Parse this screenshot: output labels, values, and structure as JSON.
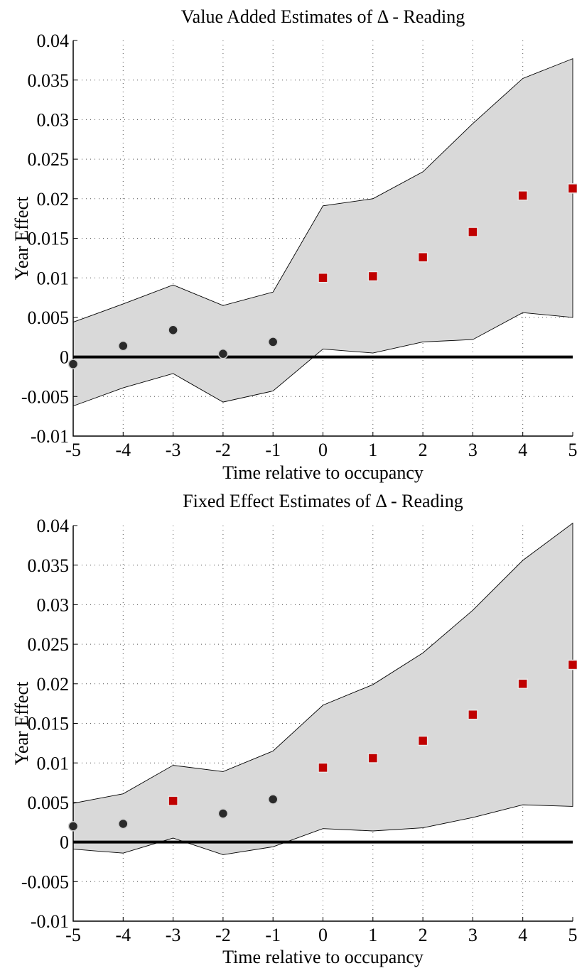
{
  "chart_data": [
    {
      "type": "scatter",
      "title": "Value Added Estimates of Δ - Reading",
      "xlabel": "Time relative to occupancy",
      "ylabel": "Year Effect",
      "x": [
        -5,
        -4,
        -3,
        -2,
        -1,
        0,
        1,
        2,
        3,
        4,
        5
      ],
      "xticks": [
        "-5",
        "-4",
        "-3",
        "-2",
        "-1",
        "0",
        "1",
        "2",
        "3",
        "4",
        "5"
      ],
      "yticks": [
        "-0.01",
        "-0.005",
        "0",
        "0.005",
        "0.01",
        "0.015",
        "0.02",
        "0.025",
        "0.03",
        "0.035",
        "0.04"
      ],
      "xlim": [
        -5,
        5
      ],
      "ylim": [
        -0.01,
        0.04
      ],
      "grid": true,
      "zero_line": 0,
      "series": [
        {
          "role": "upper_bound",
          "values": [
            0.0044,
            0.0067,
            0.0091,
            0.0065,
            0.0082,
            0.0191,
            0.02,
            0.0234,
            0.0295,
            0.0352,
            0.0377
          ]
        },
        {
          "role": "lower_bound",
          "values": [
            -0.0062,
            -0.0039,
            -0.0021,
            -0.0057,
            -0.0043,
            0.001,
            0.0005,
            0.0019,
            0.0022,
            0.0056,
            0.005
          ]
        },
        {
          "role": "estimate",
          "values": [
            -0.0009,
            0.0014,
            0.0034,
            0.0004,
            0.0019,
            0.01,
            0.0102,
            0.0126,
            0.0158,
            0.0204,
            0.0213
          ],
          "markers": [
            "circle",
            "circle",
            "circle",
            "circle",
            "circle",
            "square",
            "square",
            "square",
            "square",
            "square",
            "square"
          ]
        }
      ]
    },
    {
      "type": "scatter",
      "title": "Fixed Effect Estimates of Δ - Reading",
      "xlabel": "Time relative to occupancy",
      "ylabel": "Year Effect",
      "x": [
        -5,
        -4,
        -3,
        -2,
        -1,
        0,
        1,
        2,
        3,
        4,
        5
      ],
      "xticks": [
        "-5",
        "-4",
        "-3",
        "-2",
        "-1",
        "0",
        "1",
        "2",
        "3",
        "4",
        "5"
      ],
      "yticks": [
        "-0.01",
        "-0.005",
        "0",
        "0.005",
        "0.01",
        "0.015",
        "0.02",
        "0.025",
        "0.03",
        "0.035",
        "0.04"
      ],
      "xlim": [
        -5,
        5
      ],
      "ylim": [
        -0.01,
        0.04
      ],
      "grid": true,
      "zero_line": 0,
      "series": [
        {
          "role": "upper_bound",
          "values": [
            0.0049,
            0.0061,
            0.0097,
            0.0089,
            0.0115,
            0.0173,
            0.0199,
            0.0239,
            0.0293,
            0.0356,
            0.0403
          ]
        },
        {
          "role": "lower_bound",
          "values": [
            -0.0009,
            -0.0014,
            0.0005,
            -0.0016,
            -0.0006,
            0.0017,
            0.0014,
            0.0018,
            0.0031,
            0.0047,
            0.0045
          ]
        },
        {
          "role": "estimate",
          "values": [
            0.002,
            0.0023,
            0.0052,
            0.0036,
            0.0054,
            0.0094,
            0.0106,
            0.0128,
            0.0161,
            0.02,
            0.0224
          ],
          "markers": [
            "circle",
            "circle",
            "square",
            "circle",
            "circle",
            "square",
            "square",
            "square",
            "square",
            "square",
            "square"
          ]
        }
      ]
    }
  ],
  "colors": {
    "band_fill": "#d9d9d9",
    "circle_marker": "#2a2a2a",
    "square_marker": "#c00000",
    "zero_line": "#000000"
  }
}
